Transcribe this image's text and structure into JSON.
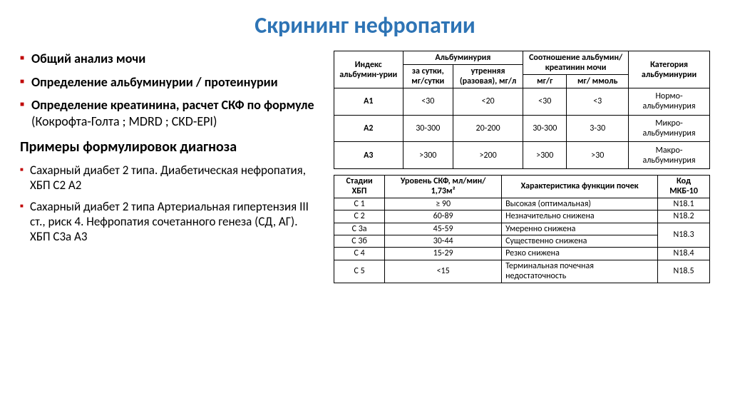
{
  "title": "Скрининг нефропатии",
  "title_color": "#2e74b5",
  "bullet_color": "#c00000",
  "text_color": "#000000",
  "main_list": [
    {
      "bold": "Общий анализ мочи"
    },
    {
      "bold": "Определение альбуминурии / протеинурии"
    },
    {
      "bold": "Определение креатинина, расчет СКФ по формуле",
      "rest": " (Кокрофта-Голта ; MDRD ; CKD-EPI)"
    }
  ],
  "sub_heading": "Примеры формулировок диагноза",
  "examples": [
    "Сахарный диабет 2 типа. Диабетическая нефропатия, ХБП С2 А2",
    "Сахарный диабет 2 типа Артериальная гипертензия III ст., риск 4. Нефропатия сочетанного генеза (СД, АГ). ХБП С3а А3"
  ],
  "table1": {
    "h_index": "Индекс альбумин-урии",
    "h_alb": "Альбуминурия",
    "h_ratio": "Соотношение альбумин/ креатинин мочи",
    "h_cat": "Категория альбуминурии",
    "h_day": "за сутки, мг/сутки",
    "h_morn": "утренняя (разовая), мг/л",
    "h_mgg": "мг/г",
    "h_mgmmol": "мг/ ммоль",
    "rows": [
      {
        "idx": "А1",
        "day": "<30",
        "morn": "<20",
        "mgg": "<30",
        "mgmmol": "<3",
        "cat": "Нормо-альбуминурия"
      },
      {
        "idx": "А2",
        "day": "30-300",
        "morn": "20-200",
        "mgg": "30-300",
        "mgmmol": "3-30",
        "cat": "Микро-альбуминурия"
      },
      {
        "idx": "А3",
        "day": ">300",
        "morn": ">200",
        "mgg": ">300",
        "mgmmol": ">30",
        "cat": "Макро-альбуминурия"
      }
    ]
  },
  "table2": {
    "h_stage": "Стадии ХБП",
    "h_gfr": "Уровень СКФ, мл/мин/ 1,73м²",
    "h_char": "Характеристика функции почек",
    "h_code": "Код МКБ-10",
    "rows": [
      {
        "stage": "С 1",
        "gfr": "≥ 90",
        "char": "Высокая (оптимальная)",
        "code": "N18.1"
      },
      {
        "stage": "С 2",
        "gfr": "60-89",
        "char": "Незначительно снижена",
        "code": "N18.2"
      },
      {
        "stage": "С 3а",
        "gfr": "45-59",
        "char": "Умеренно снижена",
        "code": "N18.3",
        "span": 2
      },
      {
        "stage": "С 3б",
        "gfr": "30-44",
        "char": "Существенно снижена"
      },
      {
        "stage": "С 4",
        "gfr": "15-29",
        "char": "Резко снижена",
        "code": "N18.4"
      },
      {
        "stage": "С 5",
        "gfr": "<15",
        "char": "Терминальная почечная недостаточность",
        "code": "N18.5"
      }
    ]
  }
}
